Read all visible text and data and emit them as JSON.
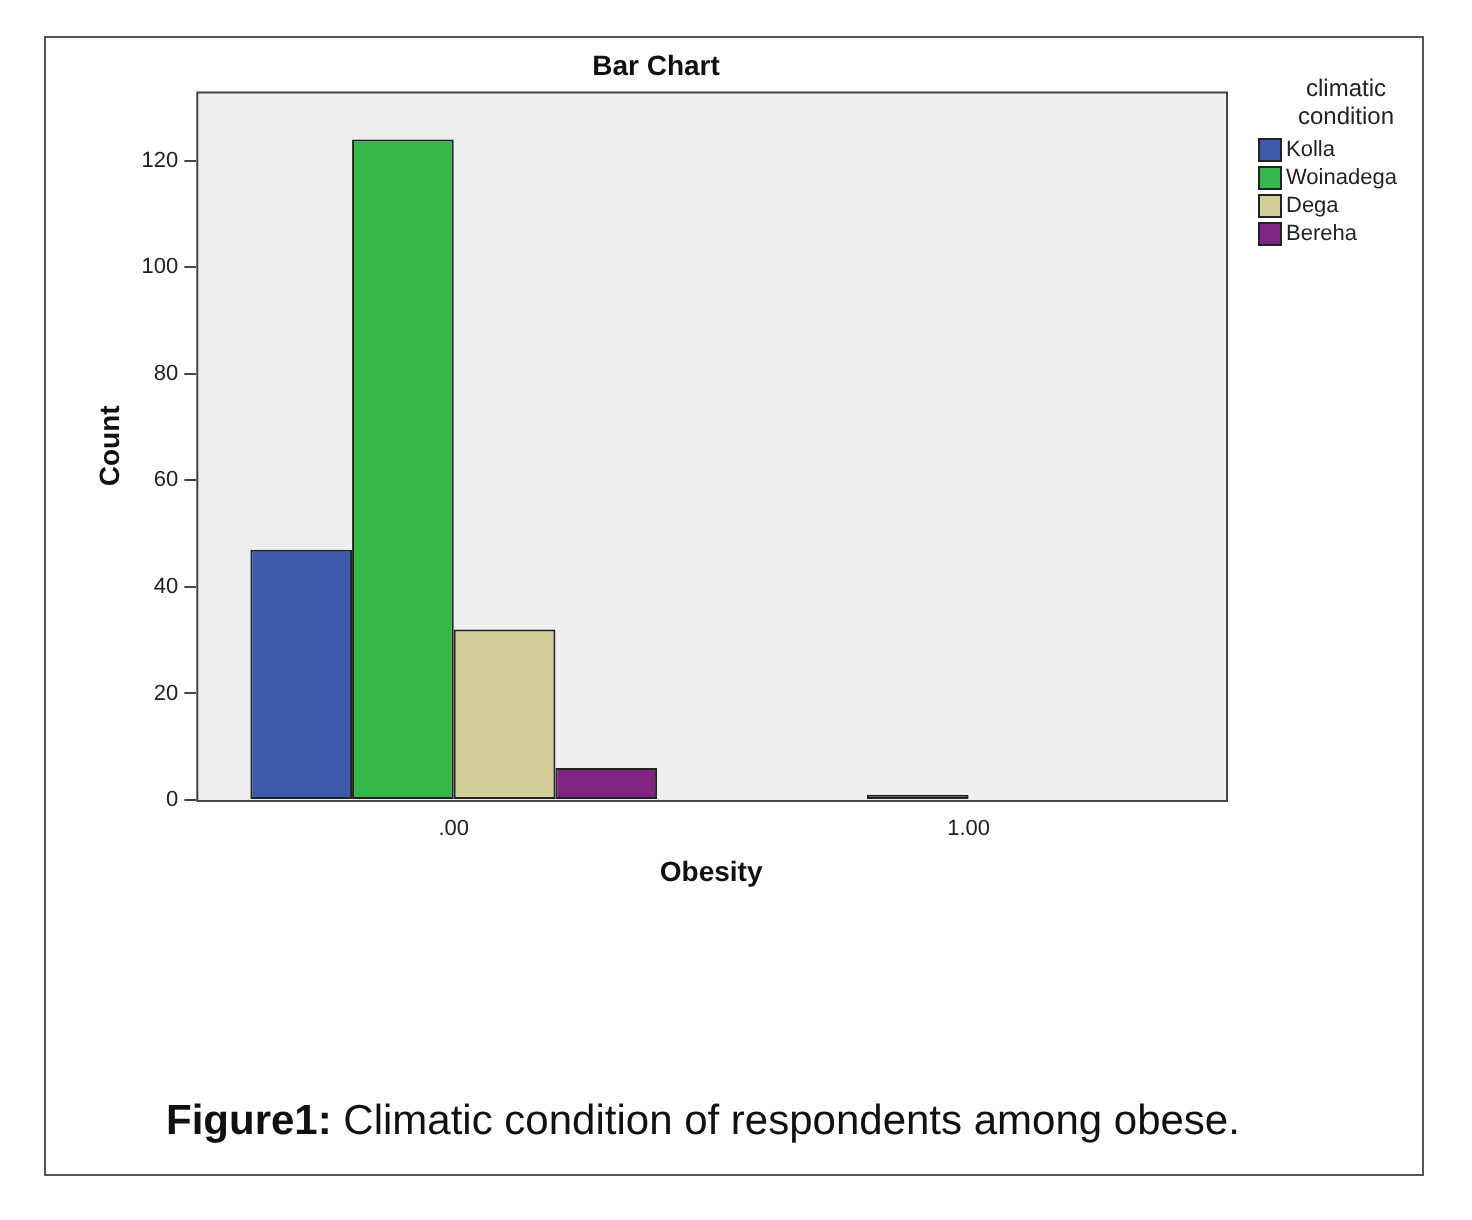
{
  "chart_data": {
    "type": "bar",
    "title": "Bar Chart",
    "xlabel": "Obesity",
    "ylabel": "Count",
    "legend_title": "climatic condition",
    "categories": [
      ".00",
      "1.00"
    ],
    "series": [
      {
        "name": "Kolla",
        "color": "#3e58ac",
        "values": [
          47,
          0
        ]
      },
      {
        "name": "Woinadega",
        "color": "#34b84a",
        "values": [
          124,
          1
        ]
      },
      {
        "name": "Dega",
        "color": "#d3ce98",
        "values": [
          32,
          0
        ]
      },
      {
        "name": "Bereha",
        "color": "#7d2580",
        "values": [
          6,
          0
        ]
      }
    ],
    "ylim": [
      0,
      133
    ],
    "yticks": [
      0,
      20,
      40,
      60,
      80,
      100,
      120
    ],
    "grid": false,
    "legend": "top right",
    "annotations": [
      "Figure1: Climatic condition of respondents among obese."
    ]
  }
}
